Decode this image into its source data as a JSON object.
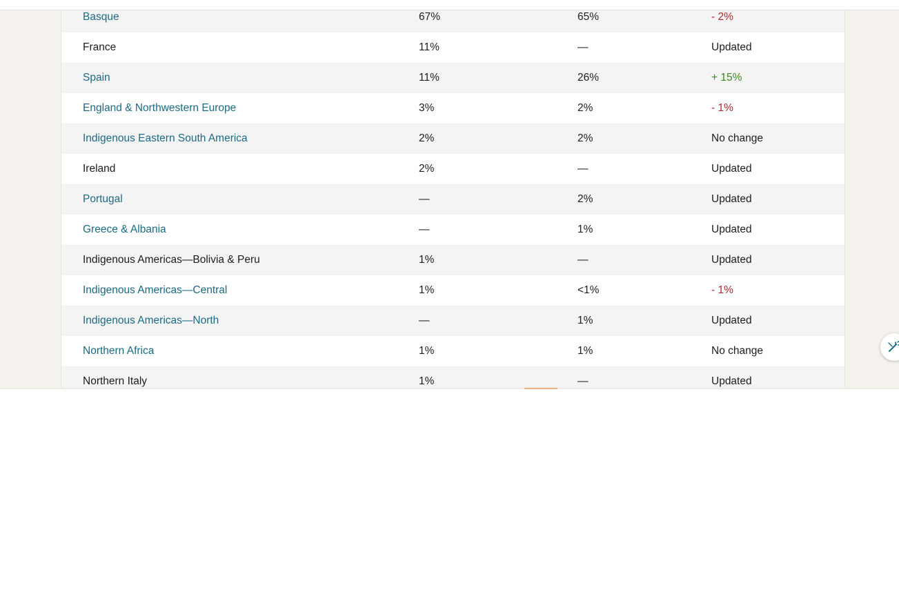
{
  "table": {
    "rows": [
      {
        "region": "Basque",
        "old": "67%",
        "new": "65%",
        "change": "- 2%",
        "region_style": "link",
        "change_style": "down"
      },
      {
        "region": "France",
        "old": "11%",
        "new": "—",
        "change": "Updated",
        "region_style": "plain",
        "change_style": "neutral"
      },
      {
        "region": "Spain",
        "old": "11%",
        "new": "26%",
        "change": "+ 15%",
        "region_style": "link",
        "change_style": "up"
      },
      {
        "region": "England & Northwestern Europe",
        "old": "3%",
        "new": "2%",
        "change": "- 1%",
        "region_style": "link",
        "change_style": "down"
      },
      {
        "region": "Indigenous Eastern South America",
        "old": "2%",
        "new": "2%",
        "change": "No change",
        "region_style": "link",
        "change_style": "neutral"
      },
      {
        "region": "Ireland",
        "old": "2%",
        "new": "—",
        "change": "Updated",
        "region_style": "plain",
        "change_style": "neutral"
      },
      {
        "region": "Portugal",
        "old": "—",
        "new": "2%",
        "change": "Updated",
        "region_style": "link",
        "change_style": "neutral"
      },
      {
        "region": "Greece & Albania",
        "old": "—",
        "new": "1%",
        "change": "Updated",
        "region_style": "link",
        "change_style": "neutral"
      },
      {
        "region": "Indigenous Americas—Bolivia & Peru",
        "old": "1%",
        "new": "—",
        "change": "Updated",
        "region_style": "plain",
        "change_style": "neutral"
      },
      {
        "region": "Indigenous Americas—Central",
        "old": "1%",
        "new": "<1%",
        "change": "- 1%",
        "region_style": "link",
        "change_style": "down"
      },
      {
        "region": "Indigenous Americas—North",
        "old": "—",
        "new": "1%",
        "change": "Updated",
        "region_style": "link",
        "change_style": "neutral"
      },
      {
        "region": "Northern Africa",
        "old": "1%",
        "new": "1%",
        "change": "No change",
        "region_style": "link",
        "change_style": "neutral"
      },
      {
        "region": "Northern Italy",
        "old": "1%",
        "new": "—",
        "change": "Updated",
        "region_style": "plain",
        "change_style": "neutral"
      }
    ]
  },
  "floating_button": {
    "icon": "magic-wand-icon"
  },
  "colors": {
    "link": "#1a6a84",
    "decrease": "#b2272d",
    "increase": "#3a8a1a",
    "text": "#1d1d1d",
    "page_background": "#f5f2ee",
    "row_shaded": "#f4f4f4"
  }
}
